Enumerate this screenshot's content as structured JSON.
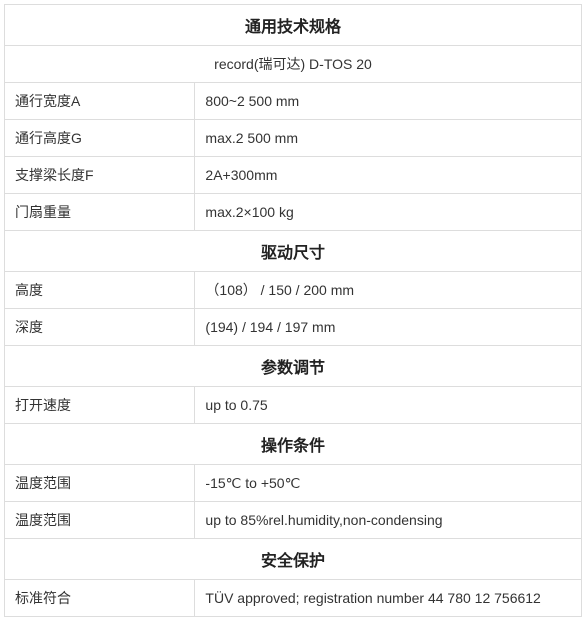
{
  "table": {
    "border_color": "#dddddd",
    "text_color": "#333333",
    "header_color": "#222222",
    "background_color": "#ffffff",
    "font_size": 14,
    "header_font_size": 16,
    "col_widths_pct": [
      33,
      67
    ],
    "sections": [
      {
        "title": "通用技术规格",
        "subtitle": "record(瑞可达)  D-TOS 20",
        "rows": [
          {
            "label": "通行宽度A",
            "value": "800~2 500 mm"
          },
          {
            "label": "通行高度G",
            "value": "max.2 500 mm"
          },
          {
            "label": "支撑梁长度F",
            "value": "2A+300mm"
          },
          {
            "label": "门扇重量",
            "value": "max.2×100 kg"
          }
        ]
      },
      {
        "title": "驱动尺寸",
        "rows": [
          {
            "label": "高度",
            "value": "（108） / 150 / 200 mm"
          },
          {
            "label": "深度",
            "value": "(194) / 194 / 197 mm"
          }
        ]
      },
      {
        "title": "参数调节",
        "rows": [
          {
            "label": "打开速度",
            "value": "up to 0.75"
          }
        ]
      },
      {
        "title": "操作条件",
        "rows": [
          {
            "label": "温度范围",
            "value": "-15℃ to +50℃"
          },
          {
            "label": "温度范围",
            "value": "up to 85%rel.humidity,non-condensing"
          }
        ]
      },
      {
        "title": "安全保护",
        "rows": [
          {
            "label": "标准符合",
            "value": "TÜV  approved; registration number 44 780 12 756612"
          }
        ]
      }
    ]
  }
}
